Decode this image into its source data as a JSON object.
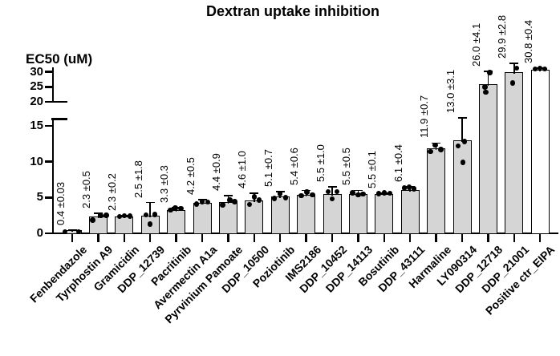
{
  "title": "Dextran uptake inhibition",
  "y_axis_label": "EC50 (uM)",
  "colors": {
    "bar_fill": "#d5d5d5",
    "bar_open_fill": "#ffffff",
    "stroke": "#000000",
    "background": "#ffffff"
  },
  "chart_data": {
    "type": "bar",
    "title": "Dextran uptake inhibition",
    "ylabel": "EC50 (uM)",
    "xlabel": "",
    "grid": false,
    "legend": false,
    "axis_break": {
      "lower_range": [
        0,
        16
      ],
      "upper_range": [
        20,
        31
      ],
      "lower_ticks": [
        0,
        5,
        10,
        15
      ],
      "upper_ticks": [
        20,
        25,
        30
      ]
    },
    "categories": [
      "Fenbendazole",
      "Tyrphostin A9",
      "Gramicidin",
      "DDP_12739",
      "Pacritinib",
      "Avermectin A1a",
      "Pyrvinium Pamoate",
      "DDP_10500",
      "Poziotinib",
      "IMS2186",
      "DDP_10452",
      "DDP_14113",
      "Bosutinib",
      "DDP_43111",
      "Harmaline",
      "LY090314",
      "DDP_12718",
      "DDP_21001",
      "Positive ctr_EIPA"
    ],
    "values": [
      0.4,
      2.3,
      2.3,
      2.5,
      3.3,
      4.2,
      4.4,
      4.6,
      5.1,
      5.4,
      5.5,
      5.5,
      5.5,
      6.1,
      11.9,
      13.0,
      26.0,
      29.9,
      30.8
    ],
    "errors": [
      0.03,
      0.5,
      0.2,
      1.8,
      0.3,
      0.5,
      0.9,
      1.0,
      0.7,
      0.6,
      1.0,
      0.5,
      0.1,
      0.4,
      0.7,
      3.1,
      4.1,
      2.8,
      0.4
    ],
    "value_labels": [
      "0.4 ±0.03",
      "2.3 ±0.5",
      "2.3 ±0.2",
      "2.5 ±1.8",
      "3.3 ±0.3",
      "4.2 ±0.5",
      "4.4 ±0.9",
      "4.6 ±1.0",
      "5.1 ±0.7",
      "5.4 ±0.6",
      "5.5 ±1.0",
      "5.5 ±0.5",
      "5.5 ±0.1",
      "6.1 ±0.4",
      "11.9 ±0.7",
      "13.0 ±3.1",
      "26.0 ±4.1",
      "29.9 ±2.8",
      "30.8 ±0.4"
    ],
    "open_bar_index": 18,
    "dots": [
      [
        [
          -9,
          0.25
        ],
        [
          8,
          0.25
        ]
      ],
      [
        [
          -7,
          1.85
        ],
        [
          3,
          2.45
        ],
        [
          10,
          2.5
        ]
      ],
      [
        [
          -6,
          2.35
        ],
        [
          0,
          2.45
        ],
        [
          7,
          2.4
        ]
      ],
      [
        [
          0,
          1.3
        ],
        [
          -5,
          2.6
        ],
        [
          6,
          2.65
        ]
      ],
      [
        [
          -7,
          3.25
        ],
        [
          -1,
          3.5
        ],
        [
          6,
          3.45
        ]
      ],
      [
        [
          -7,
          4.1
        ],
        [
          0,
          4.4
        ],
        [
          7,
          4.35
        ]
      ],
      [
        [
          -7,
          3.95
        ],
        [
          2,
          4.65
        ],
        [
          8,
          4.45
        ]
      ],
      [
        [
          -6,
          4.05
        ],
        [
          0,
          5.1
        ],
        [
          6,
          4.65
        ]
      ],
      [
        [
          -7,
          4.85
        ],
        [
          0,
          5.55
        ],
        [
          7,
          5.0
        ]
      ],
      [
        [
          -6,
          5.25
        ],
        [
          1,
          5.75
        ],
        [
          8,
          5.35
        ]
      ],
      [
        [
          0,
          4.8
        ],
        [
          -5,
          5.8
        ],
        [
          6,
          5.85
        ]
      ],
      [
        [
          -7,
          5.65
        ],
        [
          0,
          5.35
        ],
        [
          6,
          5.5
        ]
      ],
      [
        [
          -7,
          5.55
        ],
        [
          0,
          5.65
        ],
        [
          7,
          5.6
        ]
      ],
      [
        [
          -7,
          6.3
        ],
        [
          -1,
          6.45
        ],
        [
          5,
          6.2
        ]
      ],
      [
        [
          -7,
          11.4
        ],
        [
          -1,
          12.3
        ],
        [
          6,
          11.7
        ]
      ],
      [
        [
          -5,
          12.2
        ],
        [
          3,
          12.8
        ],
        [
          1,
          9.9
        ]
      ],
      [
        [
          -4,
          24.9
        ],
        [
          -3,
          23.2
        ],
        [
          2,
          29.8
        ]
      ],
      [
        [
          -2,
          26.3
        ],
        [
          3,
          31.2
        ]
      ],
      [
        [
          -6,
          30.9
        ],
        [
          0,
          31.2
        ],
        [
          6,
          30.9
        ]
      ]
    ]
  }
}
